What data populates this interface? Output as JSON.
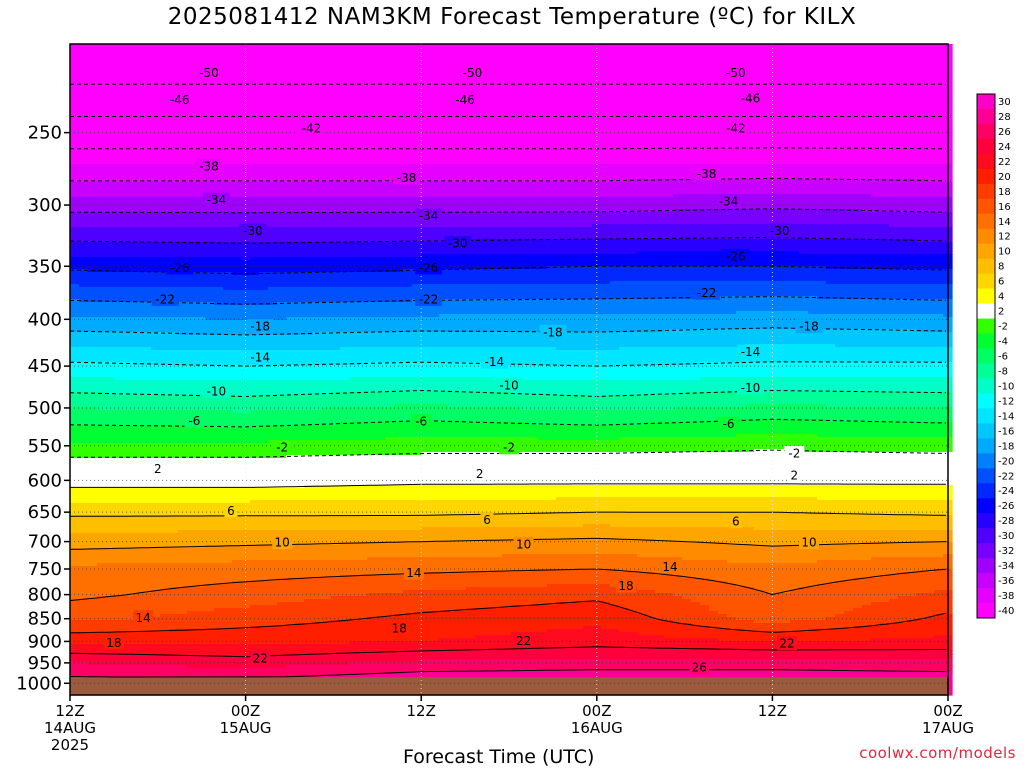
{
  "title": "2025081412 NAM3KM Forecast Temperature (ºC) for KILX",
  "credit": "coolwx.com/models",
  "chart_data": {
    "type": "heatmap",
    "title": "2025081412 NAM3KM Forecast Temperature (ºC) for KILX",
    "xlabel": "Forecast Time (UTC)",
    "ylabel": "",
    "y_scale": "log-pressure",
    "ylim": [
      1030,
      200
    ],
    "xlim_hours": [
      0,
      60
    ],
    "y_ticks": [
      250,
      300,
      350,
      400,
      450,
      500,
      550,
      600,
      650,
      700,
      750,
      800,
      850,
      900,
      950,
      1000
    ],
    "x_ticks": [
      {
        "hour": 0,
        "lines": [
          "12Z",
          "14AUG",
          "2025"
        ]
      },
      {
        "hour": 12,
        "lines": [
          "00Z",
          "15AUG"
        ]
      },
      {
        "hour": 24,
        "lines": [
          "12Z"
        ]
      },
      {
        "hour": 36,
        "lines": [
          "00Z",
          "16AUG"
        ]
      },
      {
        "hour": 48,
        "lines": [
          "12Z"
        ]
      },
      {
        "hour": 60,
        "lines": [
          "00Z",
          "17AUG"
        ]
      }
    ],
    "grid": true,
    "ground_color": "#9c5a3c",
    "ground_pressure": 985,
    "colorbar": {
      "labels": [
        "30",
        "28",
        "26",
        "24",
        "22",
        "20",
        "18",
        "16",
        "14",
        "12",
        "10",
        "8",
        "6",
        "4",
        "2",
        "-2",
        "-4",
        "-6",
        "-8",
        "-10",
        "-12",
        "-14",
        "-16",
        "-18",
        "-20",
        "-22",
        "-24",
        "-26",
        "-28",
        "-30",
        "-32",
        "-34",
        "-36",
        "-38",
        "-40"
      ],
      "colors": [
        "#ff00c8",
        "#ff0096",
        "#ff0064",
        "#ff003c",
        "#ff0a1e",
        "#ff1e00",
        "#ff3c00",
        "#ff5500",
        "#ff7000",
        "#ff8c00",
        "#ffa500",
        "#ffbe00",
        "#ffd700",
        "#ffff00",
        "#ffffff",
        "#32ff00",
        "#00ff32",
        "#00ff64",
        "#00ff96",
        "#00ffc8",
        "#00ffff",
        "#00e6ff",
        "#00c8ff",
        "#00aaff",
        "#0080ff",
        "#0050ff",
        "#0028ff",
        "#0000ff",
        "#2800ff",
        "#5000ff",
        "#7800ff",
        "#a000ff",
        "#c800ff",
        "#e600ff",
        "#ff00ff"
      ]
    },
    "profile_hour": [
      0,
      12,
      24,
      36,
      48,
      60
    ],
    "profile_levels": [
      1000,
      950,
      900,
      850,
      800,
      750,
      700,
      650,
      600,
      550,
      500,
      450,
      400,
      350,
      300,
      250,
      200
    ],
    "profile_temps": [
      [
        27,
        24,
        19.5,
        15.5,
        13.5,
        12.5,
        9,
        5.5,
        1,
        -3.5,
        -8,
        -13.5,
        -19.5,
        -26.5,
        -35,
        -44,
        -55
      ],
      [
        27,
        23,
        19.5,
        17,
        15,
        13,
        9.5,
        5.5,
        1,
        -3.5,
        -8.5,
        -14,
        -20,
        -27,
        -35,
        -44,
        -55
      ],
      [
        28,
        24.5,
        20,
        18.5,
        16.5,
        13.5,
        10,
        5.5,
        1.5,
        -3,
        -7.5,
        -13.5,
        -19.5,
        -26.5,
        -35,
        -44,
        -55
      ],
      [
        28,
        25,
        21,
        19.5,
        17.5,
        14,
        10.5,
        6,
        1.5,
        -3,
        -8.5,
        -14,
        -19.5,
        -26,
        -35,
        -44,
        -55
      ],
      [
        28,
        25,
        20,
        15,
        14,
        12.5,
        9.5,
        6,
        1.5,
        -2.5,
        -7.5,
        -13.5,
        -19,
        -26,
        -34.5,
        -44,
        -55
      ],
      [
        28,
        24.5,
        20.5,
        18.5,
        16.5,
        14,
        10,
        5.5,
        1.5,
        -3,
        -8,
        -13.5,
        -19.5,
        -26.5,
        -35,
        -44,
        -55
      ]
    ],
    "contours": [
      {
        "value": "-50",
        "positions": [
          [
            9.5,
            215
          ],
          [
            27.5,
            215
          ],
          [
            45.5,
            215
          ]
        ]
      },
      {
        "value": "-46",
        "positions": [
          [
            7.5,
            230
          ],
          [
            27,
            230
          ],
          [
            46.5,
            229
          ]
        ]
      },
      {
        "value": "-42",
        "positions": [
          [
            16.5,
            247
          ],
          [
            45.5,
            247
          ]
        ]
      },
      {
        "value": "-38",
        "positions": [
          [
            9.5,
            272
          ],
          [
            23,
            280
          ],
          [
            43.5,
            277
          ]
        ]
      },
      {
        "value": "-34",
        "positions": [
          [
            10,
            296
          ],
          [
            24.5,
            308
          ],
          [
            45,
            297
          ]
        ]
      },
      {
        "value": "-30",
        "positions": [
          [
            12.5,
            320
          ],
          [
            26.5,
            330
          ],
          [
            48.5,
            320
          ]
        ]
      },
      {
        "value": "-26",
        "positions": [
          [
            7.5,
            351
          ],
          [
            24.5,
            351
          ],
          [
            45.5,
            341
          ]
        ]
      },
      {
        "value": "-22",
        "positions": [
          [
            6.5,
            380
          ],
          [
            24.5,
            380
          ],
          [
            43.5,
            374
          ]
        ]
      },
      {
        "value": "-18",
        "positions": [
          [
            13,
            407
          ],
          [
            33,
            413
          ],
          [
            50.5,
            407
          ]
        ]
      },
      {
        "value": "-14",
        "positions": [
          [
            13,
            440
          ],
          [
            29,
            445
          ],
          [
            46.5,
            434
          ]
        ]
      },
      {
        "value": "-10",
        "positions": [
          [
            10,
            479
          ],
          [
            30,
            472
          ],
          [
            46.5,
            475
          ]
        ]
      },
      {
        "value": "-6",
        "positions": [
          [
            8.5,
            516
          ],
          [
            24,
            517
          ],
          [
            45,
            520
          ]
        ]
      },
      {
        "value": "-2",
        "positions": [
          [
            14.5,
            552
          ],
          [
            30,
            552
          ],
          [
            49.5,
            560
          ]
        ]
      },
      {
        "value": "2",
        "positions": [
          [
            6,
            582
          ],
          [
            28,
            590
          ],
          [
            49.5,
            592
          ]
        ]
      },
      {
        "value": "6",
        "positions": [
          [
            11,
            647
          ],
          [
            28.5,
            662
          ],
          [
            45.5,
            665
          ]
        ]
      },
      {
        "value": "10",
        "positions": [
          [
            14.5,
            701
          ],
          [
            31,
            704
          ],
          [
            50.5,
            701
          ]
        ]
      },
      {
        "value": "14",
        "positions": [
          [
            5,
            847
          ],
          [
            23.5,
            757
          ],
          [
            41,
            745
          ]
        ]
      },
      {
        "value": "18",
        "positions": [
          [
            3,
            902
          ],
          [
            22.5,
            870
          ],
          [
            38,
            782
          ]
        ]
      },
      {
        "value": "22",
        "positions": [
          [
            13,
            938
          ],
          [
            31,
            898
          ],
          [
            49,
            904
          ]
        ]
      },
      {
        "value": "26",
        "positions": [
          [
            43,
            960
          ]
        ]
      }
    ]
  }
}
